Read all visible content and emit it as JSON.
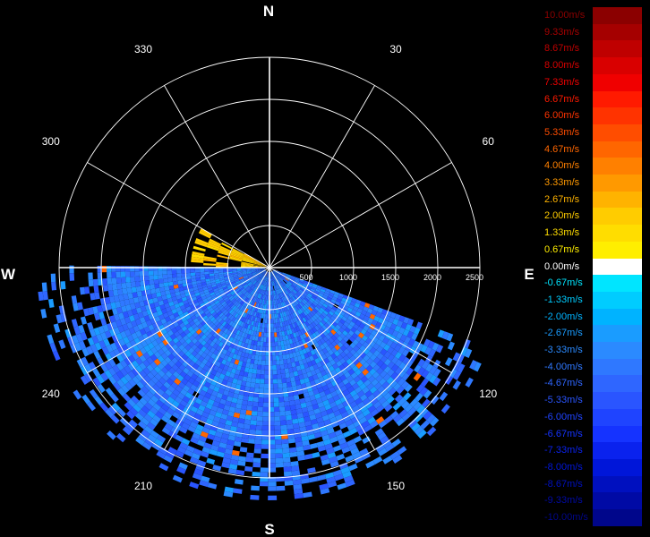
{
  "compass": {
    "north": "N",
    "south": "S",
    "east": "E",
    "west": "W"
  },
  "azimuth_labels": [
    "30",
    "60",
    "120",
    "150",
    "210",
    "240",
    "300",
    "330"
  ],
  "range_labels": [
    "500",
    "1000",
    "1500",
    "2000",
    "2500"
  ],
  "colorbar": {
    "labels": [
      "10.00m/s",
      "9.33m/s",
      "8.67m/s",
      "8.00m/s",
      "7.33m/s",
      "6.67m/s",
      "6.00m/s",
      "5.33m/s",
      "4.67m/s",
      "4.00m/s",
      "3.33m/s",
      "2.67m/s",
      "2.00m/s",
      "1.33m/s",
      "0.67m/s",
      "0.00m/s",
      "-0.67m/s",
      "-1.33m/s",
      "-2.00m/s",
      "-2.67m/s",
      "-3.33m/s",
      "-4.00m/s",
      "-4.67m/s",
      "-5.33m/s",
      "-6.00m/s",
      "-6.67m/s",
      "-7.33m/s",
      "-8.00m/s",
      "-8.67m/s",
      "-9.33m/s",
      "-10.00m/s"
    ],
    "colors": [
      "#8b0000",
      "#a50000",
      "#bf0000",
      "#d90000",
      "#f00000",
      "#ff1a00",
      "#ff3300",
      "#ff4d00",
      "#ff6600",
      "#ff8000",
      "#ff9900",
      "#ffb300",
      "#ffcc00",
      "#ffdd00",
      "#ffee00",
      "#ffffff",
      "#00e5ff",
      "#00ccff",
      "#00b3ff",
      "#1a9cff",
      "#2b8aff",
      "#2f78ff",
      "#2f66ff",
      "#2a55ff",
      "#1f44ff",
      "#1533ff",
      "#0a22ee",
      "#0016d9",
      "#0010bf",
      "#000aa5",
      "#00068b"
    ],
    "label_colors": [
      "#8b0000",
      "#a50000",
      "#bf0000",
      "#d90000",
      "#f00000",
      "#ff1a00",
      "#ff3300",
      "#ff4d00",
      "#ff6600",
      "#ff8000",
      "#ff9900",
      "#ffb300",
      "#ffcc00",
      "#ffdd00",
      "#ffee00",
      "#ffffff",
      "#00e5ff",
      "#00ccff",
      "#00b3ff",
      "#1a9cff",
      "#2b8aff",
      "#2f78ff",
      "#2f66ff",
      "#2a55ff",
      "#1f44ff",
      "#1533ff",
      "#0a22ee",
      "#0016d9",
      "#0010bf",
      "#000aa5",
      "#00068b"
    ]
  },
  "radar": {
    "max_range_m": 2500,
    "ring_step_m": 500,
    "spoke_step_deg": 30,
    "coverage_start_deg": 110,
    "coverage_end_deg": 270,
    "near_sector_start_deg": 270,
    "near_sector_end_deg": 300,
    "dominant_velocity_ms": -4.0,
    "noise_velocity_ms": 4.67
  }
}
